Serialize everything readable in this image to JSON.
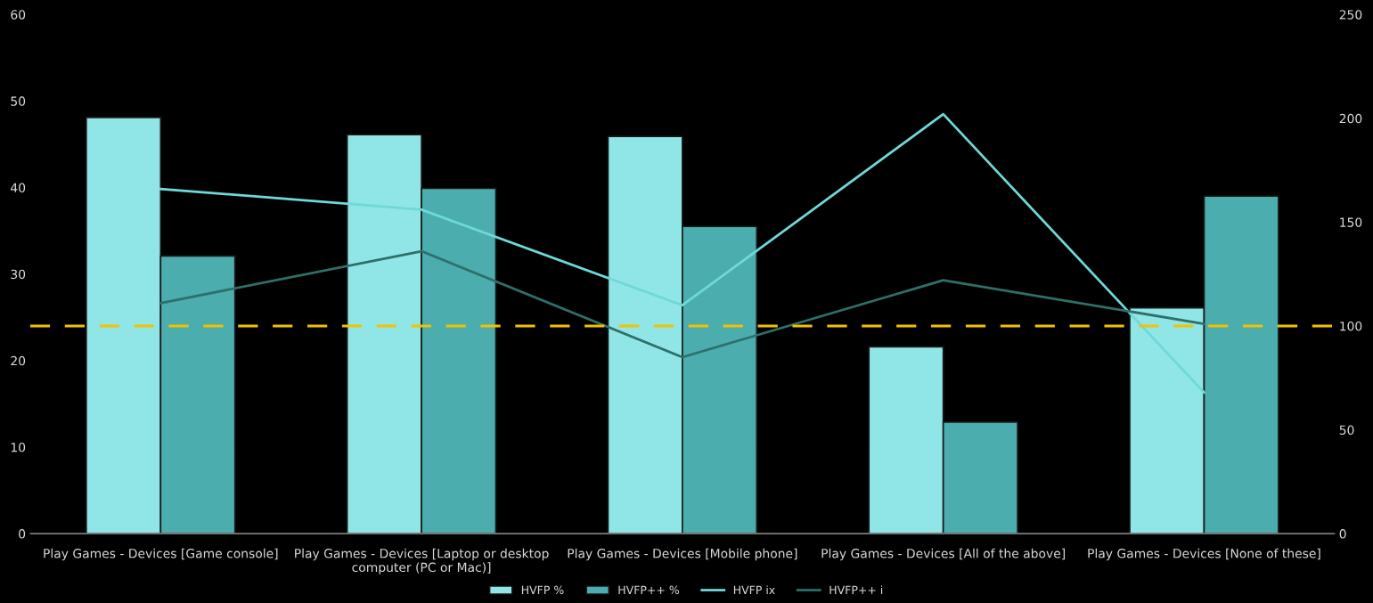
{
  "chart_data": {
    "type": "bar",
    "categories": [
      "Play Games - Devices [Game console]",
      "Play Games - Devices [Laptop or desktop computer (PC or Mac)]",
      "Play Games - Devices [Mobile phone]",
      "Play Games - Devices [All of the above]",
      "Play Games - Devices [None of these]"
    ],
    "series": [
      {
        "name": "HVFP %",
        "color": "#90e6e6",
        "values": [
          48.1,
          46.1,
          45.9,
          21.6,
          26.1
        ]
      },
      {
        "name": "HVFP++ %",
        "color": "#4badad",
        "values": [
          32.1,
          39.9,
          35.5,
          12.9,
          39.0
        ]
      },
      {
        "name": "HVFP ix",
        "type": "line",
        "axis": "y2",
        "color": "#6fd8d8",
        "values": [
          166,
          156,
          110,
          202,
          68
        ]
      },
      {
        "name": "HVFP++ i",
        "type": "line",
        "axis": "y2",
        "color": "#2f6f6b",
        "values": [
          111,
          136,
          85,
          122,
          101
        ]
      }
    ],
    "ylim": [
      0,
      60
    ],
    "yticks": [
      0,
      10,
      20,
      30,
      40,
      50,
      60
    ],
    "y2lim": [
      0,
      250
    ],
    "y2ticks": [
      0,
      50,
      100,
      150,
      200,
      250
    ],
    "ref_lines": [
      {
        "axis": "y2",
        "value": 100,
        "color": "#f2c200",
        "line_style": "dashed"
      }
    ],
    "grid": false,
    "legend": "bottom",
    "line_style": "solid",
    "marker": "none"
  }
}
